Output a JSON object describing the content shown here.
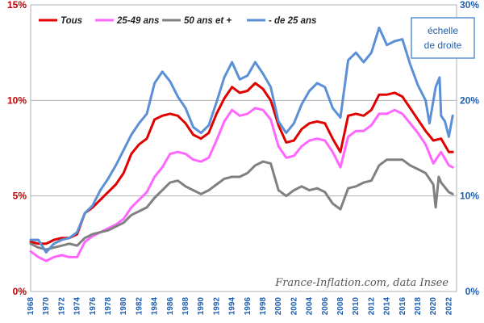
{
  "chart_data": {
    "type": "line",
    "xlim": [
      1968,
      2023
    ],
    "y_left_ticks": [
      "0%",
      "5%",
      "10%",
      "15%"
    ],
    "y_left_values": [
      0,
      5,
      10,
      15
    ],
    "y_right_ticks": [
      "0%",
      "10%",
      "20%",
      "30%"
    ],
    "y_right_values": [
      0,
      10,
      20,
      30
    ],
    "x_ticks": [
      "1968",
      "1970",
      "1972",
      "1974",
      "1976",
      "1978",
      "1980",
      "1982",
      "1984",
      "1986",
      "1988",
      "1990",
      "1992",
      "1994",
      "1996",
      "1998",
      "2000",
      "2002",
      "2004",
      "2006",
      "2008",
      "2010",
      "2012",
      "2014",
      "2016",
      "2018",
      "2020",
      "2022"
    ],
    "legend_placement": "top-left",
    "grid": "horizontal",
    "annotation": "échelle\nde droite",
    "credit": "France-Inflation.com, data Insee",
    "colors": {
      "Tous": "#e00000",
      "25-49 ans": "#ff66ff",
      "50 ans et +": "#808080",
      "- de 25 ans": "#5b8fd6",
      "left_axis": "#c00000",
      "right_axis": "#1f5fb0",
      "grid": "#b0b0b0"
    },
    "series": [
      {
        "name": "Tous",
        "axis": "left",
        "points": [
          [
            1968,
            2.6
          ],
          [
            1969,
            2.5
          ],
          [
            1970,
            2.5
          ],
          [
            1971,
            2.7
          ],
          [
            1972,
            2.8
          ],
          [
            1973,
            2.8
          ],
          [
            1974,
            3.0
          ],
          [
            1975,
            4.1
          ],
          [
            1976,
            4.4
          ],
          [
            1977,
            4.8
          ],
          [
            1978,
            5.2
          ],
          [
            1979,
            5.6
          ],
          [
            1980,
            6.2
          ],
          [
            1981,
            7.2
          ],
          [
            1982,
            7.7
          ],
          [
            1983,
            8.0
          ],
          [
            1984,
            9.0
          ],
          [
            1985,
            9.2
          ],
          [
            1986,
            9.3
          ],
          [
            1987,
            9.2
          ],
          [
            1988,
            8.8
          ],
          [
            1989,
            8.2
          ],
          [
            1990,
            8.0
          ],
          [
            1991,
            8.3
          ],
          [
            1992,
            9.3
          ],
          [
            1993,
            10.1
          ],
          [
            1994,
            10.7
          ],
          [
            1995,
            10.4
          ],
          [
            1996,
            10.5
          ],
          [
            1997,
            10.9
          ],
          [
            1998,
            10.6
          ],
          [
            1999,
            10.0
          ],
          [
            2000,
            8.7
          ],
          [
            2001,
            7.8
          ],
          [
            2002,
            7.9
          ],
          [
            2003,
            8.5
          ],
          [
            2004,
            8.8
          ],
          [
            2005,
            8.9
          ],
          [
            2006,
            8.8
          ],
          [
            2007,
            8.0
          ],
          [
            2008,
            7.3
          ],
          [
            2009,
            9.2
          ],
          [
            2010,
            9.3
          ],
          [
            2011,
            9.2
          ],
          [
            2012,
            9.5
          ],
          [
            2013,
            10.3
          ],
          [
            2014,
            10.3
          ],
          [
            2015,
            10.4
          ],
          [
            2016,
            10.2
          ],
          [
            2017,
            9.6
          ],
          [
            2018,
            9.0
          ],
          [
            2019,
            8.4
          ],
          [
            2020,
            7.9
          ],
          [
            2021,
            8.0
          ],
          [
            2022,
            7.3
          ],
          [
            2022.5,
            7.3
          ]
        ]
      },
      {
        "name": "25-49 ans",
        "axis": "left",
        "points": [
          [
            1968,
            2.1
          ],
          [
            1969,
            1.8
          ],
          [
            1970,
            1.6
          ],
          [
            1971,
            1.8
          ],
          [
            1972,
            1.9
          ],
          [
            1973,
            1.8
          ],
          [
            1974,
            1.8
          ],
          [
            1975,
            2.6
          ],
          [
            1976,
            2.9
          ],
          [
            1977,
            3.1
          ],
          [
            1978,
            3.3
          ],
          [
            1979,
            3.5
          ],
          [
            1980,
            3.8
          ],
          [
            1981,
            4.4
          ],
          [
            1982,
            4.8
          ],
          [
            1983,
            5.2
          ],
          [
            1984,
            6.0
          ],
          [
            1985,
            6.5
          ],
          [
            1986,
            7.2
          ],
          [
            1987,
            7.3
          ],
          [
            1988,
            7.2
          ],
          [
            1989,
            6.9
          ],
          [
            1990,
            6.8
          ],
          [
            1991,
            7.0
          ],
          [
            1992,
            7.9
          ],
          [
            1993,
            8.9
          ],
          [
            1994,
            9.5
          ],
          [
            1995,
            9.2
          ],
          [
            1996,
            9.3
          ],
          [
            1997,
            9.6
          ],
          [
            1998,
            9.5
          ],
          [
            1999,
            9.0
          ],
          [
            2000,
            7.6
          ],
          [
            2001,
            7.0
          ],
          [
            2002,
            7.1
          ],
          [
            2003,
            7.6
          ],
          [
            2004,
            7.9
          ],
          [
            2005,
            8.0
          ],
          [
            2006,
            7.9
          ],
          [
            2007,
            7.3
          ],
          [
            2008,
            6.5
          ],
          [
            2009,
            8.1
          ],
          [
            2010,
            8.4
          ],
          [
            2011,
            8.4
          ],
          [
            2012,
            8.7
          ],
          [
            2013,
            9.3
          ],
          [
            2014,
            9.3
          ],
          [
            2015,
            9.5
          ],
          [
            2016,
            9.3
          ],
          [
            2017,
            8.8
          ],
          [
            2018,
            8.3
          ],
          [
            2019,
            7.7
          ],
          [
            2020,
            6.7
          ],
          [
            2021,
            7.3
          ],
          [
            2022,
            6.6
          ],
          [
            2022.5,
            6.5
          ]
        ]
      },
      {
        "name": "50 ans et +",
        "axis": "left",
        "points": [
          [
            1968,
            2.5
          ],
          [
            1969,
            2.3
          ],
          [
            1970,
            2.2
          ],
          [
            1971,
            2.3
          ],
          [
            1972,
            2.4
          ],
          [
            1973,
            2.5
          ],
          [
            1974,
            2.4
          ],
          [
            1975,
            2.8
          ],
          [
            1976,
            3.0
          ],
          [
            1977,
            3.1
          ],
          [
            1978,
            3.2
          ],
          [
            1979,
            3.4
          ],
          [
            1980,
            3.6
          ],
          [
            1981,
            4.0
          ],
          [
            1982,
            4.2
          ],
          [
            1983,
            4.4
          ],
          [
            1984,
            4.9
          ],
          [
            1985,
            5.3
          ],
          [
            1986,
            5.7
          ],
          [
            1987,
            5.8
          ],
          [
            1988,
            5.5
          ],
          [
            1989,
            5.3
          ],
          [
            1990,
            5.1
          ],
          [
            1991,
            5.3
          ],
          [
            1992,
            5.6
          ],
          [
            1993,
            5.9
          ],
          [
            1994,
            6.0
          ],
          [
            1995,
            6.0
          ],
          [
            1996,
            6.2
          ],
          [
            1997,
            6.6
          ],
          [
            1998,
            6.8
          ],
          [
            1999,
            6.7
          ],
          [
            2000,
            5.3
          ],
          [
            2001,
            5.0
          ],
          [
            2002,
            5.3
          ],
          [
            2003,
            5.5
          ],
          [
            2004,
            5.3
          ],
          [
            2005,
            5.4
          ],
          [
            2006,
            5.2
          ],
          [
            2007,
            4.6
          ],
          [
            2008,
            4.3
          ],
          [
            2009,
            5.4
          ],
          [
            2010,
            5.5
          ],
          [
            2011,
            5.7
          ],
          [
            2012,
            5.8
          ],
          [
            2013,
            6.6
          ],
          [
            2014,
            6.9
          ],
          [
            2015,
            6.9
          ],
          [
            2016,
            6.9
          ],
          [
            2017,
            6.6
          ],
          [
            2018,
            6.4
          ],
          [
            2019,
            6.2
          ],
          [
            2020,
            5.6
          ],
          [
            2020.3,
            4.4
          ],
          [
            2020.7,
            6.0
          ],
          [
            2021,
            5.7
          ],
          [
            2022,
            5.2
          ],
          [
            2022.5,
            5.1
          ]
        ]
      },
      {
        "name": "- de 25 ans",
        "axis": "right",
        "points": [
          [
            1968,
            5.4
          ],
          [
            1969,
            5.4
          ],
          [
            1970,
            4.1
          ],
          [
            1971,
            5.0
          ],
          [
            1972,
            5.4
          ],
          [
            1973,
            5.6
          ],
          [
            1974,
            6.2
          ],
          [
            1975,
            8.2
          ],
          [
            1976,
            9.0
          ],
          [
            1977,
            10.6
          ],
          [
            1978,
            11.8
          ],
          [
            1979,
            13.2
          ],
          [
            1980,
            14.8
          ],
          [
            1981,
            16.4
          ],
          [
            1982,
            17.6
          ],
          [
            1983,
            18.6
          ],
          [
            1984,
            21.8
          ],
          [
            1985,
            23.0
          ],
          [
            1986,
            22.0
          ],
          [
            1987,
            20.4
          ],
          [
            1988,
            19.2
          ],
          [
            1989,
            17.2
          ],
          [
            1990,
            16.6
          ],
          [
            1991,
            17.4
          ],
          [
            1992,
            19.8
          ],
          [
            1993,
            22.4
          ],
          [
            1994,
            24.0
          ],
          [
            1995,
            22.2
          ],
          [
            1996,
            22.6
          ],
          [
            1997,
            24.0
          ],
          [
            1998,
            22.8
          ],
          [
            1999,
            21.4
          ],
          [
            2000,
            17.8
          ],
          [
            2001,
            16.6
          ],
          [
            2002,
            17.6
          ],
          [
            2003,
            19.6
          ],
          [
            2004,
            21.0
          ],
          [
            2005,
            21.8
          ],
          [
            2006,
            21.4
          ],
          [
            2007,
            19.2
          ],
          [
            2008,
            18.2
          ],
          [
            2009,
            24.2
          ],
          [
            2010,
            25.0
          ],
          [
            2011,
            24.0
          ],
          [
            2012,
            25.0
          ],
          [
            2013,
            27.6
          ],
          [
            2014,
            25.8
          ],
          [
            2015,
            26.2
          ],
          [
            2016,
            26.4
          ],
          [
            2017,
            23.8
          ],
          [
            2018,
            21.6
          ],
          [
            2019,
            20.0
          ],
          [
            2019.5,
            17.6
          ],
          [
            2020.3,
            21.4
          ],
          [
            2020.8,
            22.4
          ],
          [
            2021,
            18.4
          ],
          [
            2021.5,
            17.8
          ],
          [
            2022,
            16.2
          ],
          [
            2022.5,
            18.4
          ]
        ]
      }
    ]
  }
}
